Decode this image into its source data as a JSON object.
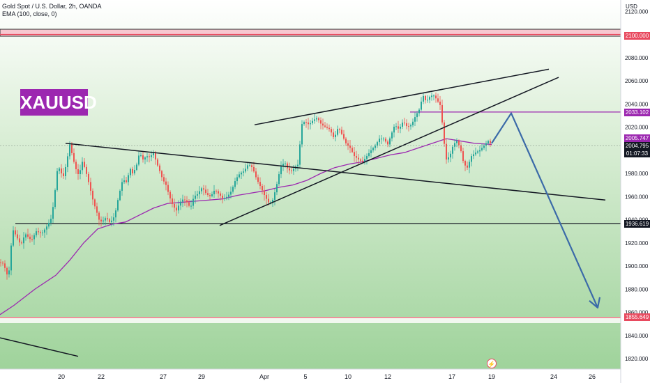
{
  "header": {
    "title": "Gold Spot / U.S. Dollar, 2h, OANDA",
    "indicator": "EMA (100, close, 0)",
    "currency": "USD"
  },
  "badge": {
    "label": "XAUUSD"
  },
  "live_icon": {
    "name": "lightning-icon",
    "glyph": "⚡"
  },
  "price_tags": {
    "resistance": {
      "label": "2100.000",
      "color": "#e84a5f"
    },
    "level_mid": {
      "label": "2033.102",
      "color": "#9c27b0"
    },
    "ema": {
      "label": "2005.747",
      "color": "#9c27b0"
    },
    "last": {
      "label": "2004.795",
      "countdown": "01:07:33",
      "color": "#131722"
    },
    "support": {
      "label": "1936.619",
      "color": "#131722"
    },
    "bottom": {
      "label": "1855.649",
      "color": "#e84a5f"
    }
  },
  "colors": {
    "up": "#26a69a",
    "down": "#ef5350",
    "ema": "#9c27b0",
    "target_arrow": "#3b6aa8"
  },
  "chart_data": {
    "type": "candlestick",
    "y_axis": {
      "ticks": [
        1820,
        1840,
        1860,
        1880,
        1900,
        1920,
        1940,
        1960,
        1980,
        2000,
        2020,
        2040,
        2060,
        2080,
        2100,
        2120
      ],
      "tick_labels": [
        "1820.000",
        "1840.000",
        "1860.000",
        "1880.000",
        "1900.000",
        "1920.000",
        "1940.000",
        "1960.000",
        "1980.000",
        "2000.000",
        "2020.000",
        "2040.000",
        "2060.000",
        "2080.000",
        "2100.000",
        "2120.000"
      ],
      "range": [
        1810,
        2128
      ]
    },
    "x_axis": {
      "tick_labels": [
        "20",
        "22",
        "27",
        "29",
        "Apr",
        "5",
        "10",
        "12",
        "17",
        "19",
        "24",
        "26"
      ]
    },
    "price_path": [
      [
        0,
        1903
      ],
      [
        5,
        1902
      ],
      [
        12,
        1889
      ],
      [
        18,
        1932
      ],
      [
        24,
        1925
      ],
      [
        30,
        1918
      ],
      [
        36,
        1928
      ],
      [
        45,
        1922
      ],
      [
        52,
        1930
      ],
      [
        60,
        1928
      ],
      [
        68,
        1935
      ],
      [
        74,
        1942
      ],
      [
        78,
        1960
      ],
      [
        82,
        1982
      ],
      [
        86,
        1985
      ],
      [
        90,
        1975
      ],
      [
        95,
        1988
      ],
      [
        100,
        2005
      ],
      [
        104,
        1995
      ],
      [
        108,
        1985
      ],
      [
        113,
        1978
      ],
      [
        118,
        1990
      ],
      [
        122,
        1984
      ],
      [
        126,
        1975
      ],
      [
        130,
        1965
      ],
      [
        134,
        1955
      ],
      [
        138,
        1948
      ],
      [
        142,
        1940
      ],
      [
        146,
        1938
      ],
      [
        152,
        1942
      ],
      [
        157,
        1938
      ],
      [
        162,
        1940
      ],
      [
        166,
        1948
      ],
      [
        170,
        1960
      ],
      [
        176,
        1975
      ],
      [
        182,
        1972
      ],
      [
        186,
        1985
      ],
      [
        190,
        1980
      ],
      [
        195,
        1985
      ],
      [
        200,
        1998
      ],
      [
        205,
        1992
      ],
      [
        210,
        1995
      ],
      [
        215,
        1994
      ],
      [
        220,
        1998
      ],
      [
        224,
        1990
      ],
      [
        229,
        1982
      ],
      [
        233,
        1975
      ],
      [
        238,
        1970
      ],
      [
        243,
        1960
      ],
      [
        248,
        1952
      ],
      [
        253,
        1948
      ],
      [
        258,
        1955
      ],
      [
        263,
        1958
      ],
      [
        268,
        1955
      ],
      [
        273,
        1950
      ],
      [
        278,
        1960
      ],
      [
        283,
        1962
      ],
      [
        290,
        1968
      ],
      [
        296,
        1962
      ],
      [
        302,
        1960
      ],
      [
        308,
        1966
      ],
      [
        314,
        1962
      ],
      [
        320,
        1958
      ],
      [
        326,
        1960
      ],
      [
        332,
        1965
      ],
      [
        338,
        1975
      ],
      [
        344,
        1980
      ],
      [
        350,
        1982
      ],
      [
        356,
        1988
      ],
      [
        362,
        1985
      ],
      [
        368,
        1975
      ],
      [
        374,
        1968
      ],
      [
        380,
        1960
      ],
      [
        385,
        1955
      ],
      [
        390,
        1955
      ],
      [
        396,
        1968
      ],
      [
        402,
        1985
      ],
      [
        408,
        1990
      ],
      [
        413,
        1983
      ],
      [
        418,
        1982
      ],
      [
        424,
        1986
      ],
      [
        428,
        1988
      ],
      [
        432,
        2022
      ],
      [
        437,
        2025
      ],
      [
        443,
        2022
      ],
      [
        449,
        2026
      ],
      [
        455,
        2028
      ],
      [
        461,
        2022
      ],
      [
        467,
        2020
      ],
      [
        473,
        2018
      ],
      [
        479,
        2010
      ],
      [
        485,
        2020
      ],
      [
        490,
        2014
      ],
      [
        496,
        2006
      ],
      [
        502,
        2002
      ],
      [
        508,
        1995
      ],
      [
        514,
        1992
      ],
      [
        520,
        1990
      ],
      [
        526,
        1995
      ],
      [
        532,
        2000
      ],
      [
        538,
        2004
      ],
      [
        544,
        2010
      ],
      [
        550,
        2010
      ],
      [
        556,
        2005
      ],
      [
        560,
        2012
      ],
      [
        566,
        2022
      ],
      [
        572,
        2018
      ],
      [
        578,
        2025
      ],
      [
        584,
        2020
      ],
      [
        590,
        2022
      ],
      [
        596,
        2030
      ],
      [
        602,
        2036
      ],
      [
        606,
        2048
      ],
      [
        611,
        2042
      ],
      [
        616,
        2046
      ],
      [
        621,
        2048
      ],
      [
        626,
        2044
      ],
      [
        632,
        2038
      ],
      [
        636,
        2010
      ],
      [
        640,
        1992
      ],
      [
        645,
        1995
      ],
      [
        650,
        2005
      ],
      [
        655,
        2008
      ],
      [
        660,
        2002
      ],
      [
        665,
        1988
      ],
      [
        670,
        1985
      ],
      [
        676,
        1995
      ],
      [
        682,
        1998
      ],
      [
        688,
        2000
      ],
      [
        694,
        2004
      ],
      [
        700,
        2008
      ],
      [
        705,
        2005
      ]
    ],
    "ema_path": [
      [
        0,
        1858
      ],
      [
        20,
        1866
      ],
      [
        50,
        1880
      ],
      [
        80,
        1892
      ],
      [
        100,
        1905
      ],
      [
        120,
        1920
      ],
      [
        140,
        1932
      ],
      [
        160,
        1936
      ],
      [
        180,
        1938
      ],
      [
        200,
        1944
      ],
      [
        220,
        1950
      ],
      [
        240,
        1954
      ],
      [
        260,
        1955
      ],
      [
        280,
        1956
      ],
      [
        300,
        1957
      ],
      [
        320,
        1958
      ],
      [
        340,
        1961
      ],
      [
        360,
        1963
      ],
      [
        380,
        1965
      ],
      [
        400,
        1968
      ],
      [
        420,
        1970
      ],
      [
        440,
        1974
      ],
      [
        460,
        1980
      ],
      [
        480,
        1985
      ],
      [
        500,
        1988
      ],
      [
        520,
        1990
      ],
      [
        540,
        1993
      ],
      [
        560,
        1996
      ],
      [
        580,
        1998
      ],
      [
        600,
        2002
      ],
      [
        620,
        2006
      ],
      [
        640,
        2010
      ],
      [
        660,
        2008
      ],
      [
        680,
        2006
      ],
      [
        705,
        2005
      ]
    ],
    "horizontal_levels": [
      {
        "name": "resistance-2100",
        "value": 2100,
        "color": "#e84a5f"
      },
      {
        "name": "level-2033",
        "value": 2033,
        "color": "#9c27b0"
      },
      {
        "name": "support-1936",
        "value": 1936.6,
        "color": "#131722"
      },
      {
        "name": "level-1855",
        "value": 1855.6,
        "color": "#e84a5f"
      }
    ],
    "trendlines": [
      {
        "name": "upper-descending-line",
        "from": [
          94,
          2006
        ],
        "to": [
          868,
          1957
        ]
      },
      {
        "name": "wedge-upper-line",
        "from": [
          365,
          2022
        ],
        "to": [
          787,
          2070
        ]
      },
      {
        "name": "wedge-lower-line",
        "from": [
          315,
          1935
        ],
        "to": [
          801,
          2063
        ]
      },
      {
        "name": "bottom-left-line",
        "from": [
          0,
          1838
        ],
        "to": [
          112,
          1822
        ]
      }
    ],
    "projection_path": [
      [
        705,
        2006
      ],
      [
        733,
        2032
      ],
      [
        857,
        1864
      ]
    ]
  }
}
